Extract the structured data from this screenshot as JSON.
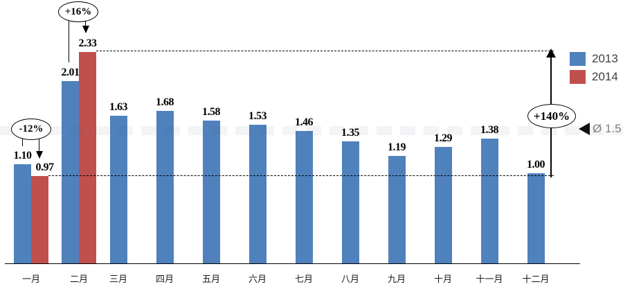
{
  "chart_data": {
    "type": "bar",
    "title": "",
    "categories": [
      "一月",
      "二月",
      "三月",
      "四月",
      "五月",
      "六月",
      "七月",
      "八月",
      "九月",
      "十月",
      "十一月",
      "十二月"
    ],
    "series": [
      {
        "name": "2013",
        "color": "#4F81BD",
        "values": [
          1.1,
          2.01,
          1.63,
          1.68,
          1.58,
          1.53,
          1.46,
          1.35,
          1.19,
          1.29,
          1.38,
          1.0
        ]
      },
      {
        "name": "2014",
        "color": "#C0504D",
        "values": [
          0.97,
          2.33,
          null,
          null,
          null,
          null,
          null,
          null,
          null,
          null,
          null,
          null
        ]
      }
    ],
    "value_label_format": "0.00",
    "ylim": [
      0,
      2.6
    ],
    "grid": false,
    "legend_position": "right",
    "annotations": {
      "jan": {
        "label": "-12%"
      },
      "feb": {
        "label": "+16%"
      },
      "range": {
        "label": "+140%"
      },
      "average": {
        "label": "Ø 1.5"
      },
      "reference_values": [
        0.97,
        2.33
      ]
    }
  }
}
